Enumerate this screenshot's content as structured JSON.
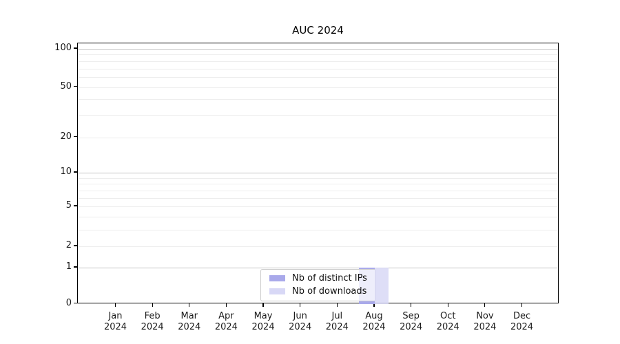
{
  "chart_data": {
    "type": "bar",
    "title": "AUC 2024",
    "categories": [
      "Jan 2024",
      "Feb 2024",
      "Mar 2024",
      "Apr 2024",
      "May 2024",
      "Jun 2024",
      "Jul 2024",
      "Aug 2024",
      "Sep 2024",
      "Oct 2024",
      "Nov 2024",
      "Dec 2024"
    ],
    "series": [
      {
        "name": "Nb of distinct IPs",
        "color": "#a9a9ea",
        "values": [
          0,
          0,
          0,
          0,
          0,
          0,
          0,
          1,
          0,
          0,
          0,
          0
        ]
      },
      {
        "name": "Nb of downloads",
        "color": "#d8d8f6",
        "values": [
          0,
          0,
          0,
          0,
          0,
          0,
          0,
          1,
          0,
          0,
          0,
          0
        ]
      }
    ],
    "yscale": "log1p",
    "yticks": [
      0,
      1,
      2,
      5,
      10,
      20,
      50,
      100
    ],
    "y_decade_gridlines": [
      1,
      10,
      100
    ],
    "y_minor_gridlines": [
      3,
      4,
      6,
      7,
      8,
      9,
      30,
      40,
      60,
      70,
      80,
      90
    ],
    "ylim": [
      0,
      110
    ],
    "grid": true,
    "legend_position": "bottom-center-inside",
    "colors": {
      "grid_minor": "#ededed",
      "grid_decade": "#c4c4c4",
      "value_one_line": "#c6c6c6",
      "spine": "#000000",
      "legend_border": "#cccccc",
      "tick_text": "#1a1a1a"
    }
  }
}
